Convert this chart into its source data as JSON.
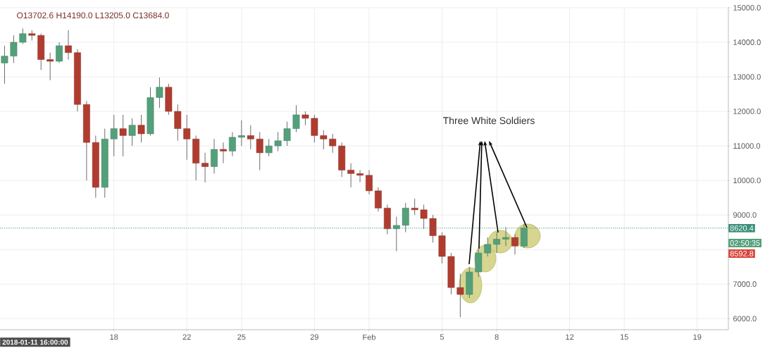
{
  "chart_data": {
    "type": "candlestick",
    "x": [
      "2018-01-12T00:00",
      "2018-01-12T12:00",
      "2018-01-13T00:00",
      "2018-01-13T12:00",
      "2018-01-14T00:00",
      "2018-01-14T12:00",
      "2018-01-15T00:00",
      "2018-01-15T12:00",
      "2018-01-16T00:00",
      "2018-01-16T12:00",
      "2018-01-17T00:00",
      "2018-01-17T12:00",
      "2018-01-18T00:00",
      "2018-01-18T12:00",
      "2018-01-19T00:00",
      "2018-01-19T12:00",
      "2018-01-20T00:00",
      "2018-01-20T12:00",
      "2018-01-21T00:00",
      "2018-01-21T12:00",
      "2018-01-22T00:00",
      "2018-01-22T12:00",
      "2018-01-23T00:00",
      "2018-01-23T12:00",
      "2018-01-24T00:00",
      "2018-01-24T12:00",
      "2018-01-25T00:00",
      "2018-01-25T12:00",
      "2018-01-26T00:00",
      "2018-01-26T12:00",
      "2018-01-27T00:00",
      "2018-01-27T12:00",
      "2018-01-28T00:00",
      "2018-01-28T12:00",
      "2018-01-29T00:00",
      "2018-01-29T12:00",
      "2018-01-30T00:00",
      "2018-01-30T12:00",
      "2018-01-31T00:00",
      "2018-01-31T12:00",
      "2018-02-01T00:00",
      "2018-02-01T12:00",
      "2018-02-02T00:00",
      "2018-02-02T12:00",
      "2018-02-03T00:00",
      "2018-02-03T12:00",
      "2018-02-04T00:00",
      "2018-02-04T12:00",
      "2018-02-05T00:00",
      "2018-02-05T12:00",
      "2018-02-06T00:00",
      "2018-02-06T12:00",
      "2018-02-07T00:00",
      "2018-02-07T12:00",
      "2018-02-08T00:00",
      "2018-02-08T12:00",
      "2018-02-09T00:00",
      "2018-02-09T12:00"
    ],
    "ohlc": [
      [
        13400,
        13900,
        12800,
        13600
      ],
      [
        13600,
        14200,
        13400,
        14000
      ],
      [
        14000,
        14400,
        13950,
        14250
      ],
      [
        14250,
        14350,
        14050,
        14200
      ],
      [
        14200,
        14250,
        13200,
        13500
      ],
      [
        13500,
        13700,
        12900,
        13450
      ],
      [
        13450,
        14000,
        13400,
        13900
      ],
      [
        13900,
        14350,
        13500,
        13700
      ],
      [
        13700,
        13800,
        12000,
        12200
      ],
      [
        12200,
        12300,
        10000,
        11100
      ],
      [
        11100,
        11300,
        9500,
        9800
      ],
      [
        9800,
        11500,
        9500,
        11200
      ],
      [
        11200,
        11900,
        10700,
        11500
      ],
      [
        11500,
        11900,
        10700,
        11300
      ],
      [
        11300,
        11800,
        11000,
        11600
      ],
      [
        11600,
        11900,
        11100,
        11350
      ],
      [
        11350,
        12700,
        11300,
        12400
      ],
      [
        12400,
        12980,
        12100,
        12700
      ],
      [
        12700,
        12800,
        11900,
        12000
      ],
      [
        12000,
        12200,
        11150,
        11500
      ],
      [
        11500,
        11900,
        10600,
        11200
      ],
      [
        11200,
        11300,
        10000,
        10500
      ],
      [
        10500,
        10800,
        9940,
        10400
      ],
      [
        10400,
        11200,
        10200,
        10900
      ],
      [
        10900,
        11100,
        10500,
        10850
      ],
      [
        10850,
        11400,
        10700,
        11250
      ],
      [
        11250,
        11740,
        11000,
        11300
      ],
      [
        11300,
        11600,
        10900,
        11200
      ],
      [
        11200,
        11400,
        10300,
        10800
      ],
      [
        10800,
        11200,
        10700,
        11000
      ],
      [
        11000,
        11400,
        10850,
        11150
      ],
      [
        11150,
        11700,
        11000,
        11500
      ],
      [
        11500,
        12180,
        11400,
        11900
      ],
      [
        11900,
        12000,
        11600,
        11800
      ],
      [
        11800,
        11900,
        11100,
        11300
      ],
      [
        11300,
        11450,
        10900,
        11200
      ],
      [
        11200,
        11350,
        10800,
        11000
      ],
      [
        11000,
        11100,
        10100,
        10300
      ],
      [
        10300,
        10500,
        9800,
        10200
      ],
      [
        10200,
        10300,
        9950,
        10150
      ],
      [
        10150,
        10300,
        9600,
        9700
      ],
      [
        9700,
        9800,
        9100,
        9200
      ],
      [
        9200,
        9300,
        8440,
        8600
      ],
      [
        8600,
        8950,
        7950,
        8700
      ],
      [
        8700,
        9350,
        8500,
        9200
      ],
      [
        9200,
        9470,
        9000,
        9150
      ],
      [
        9150,
        9300,
        8600,
        8900
      ],
      [
        8900,
        9000,
        8200,
        8400
      ],
      [
        8400,
        8500,
        7600,
        7800
      ],
      [
        7800,
        7900,
        6700,
        6900
      ],
      [
        6900,
        7300,
        6040,
        6700
      ],
      [
        6700,
        7500,
        6600,
        7350
      ],
      [
        7350,
        8050,
        7200,
        7900
      ],
      [
        7900,
        8350,
        7800,
        8150
      ],
      [
        8150,
        8500,
        7900,
        8300
      ],
      [
        8300,
        8650,
        8100,
        8350
      ],
      [
        8350,
        8450,
        7850,
        8100
      ],
      [
        8100,
        8750,
        8050,
        8620.4
      ]
    ],
    "colors": [
      "#53a07a",
      "#53a07a",
      "#53a07a",
      "#b03c30",
      "#b03c30",
      "#b03c30",
      "#53a07a",
      "#b03c30",
      "#b03c30",
      "#b03c30",
      "#b03c30",
      "#53a07a",
      "#53a07a",
      "#b03c30",
      "#53a07a",
      "#b03c30",
      "#53a07a",
      "#53a07a",
      "#b03c30",
      "#b03c30",
      "#b03c30",
      "#b03c30",
      "#b03c30",
      "#53a07a",
      "#b03c30",
      "#53a07a",
      "#53a07a",
      "#b03c30",
      "#b03c30",
      "#53a07a",
      "#53a07a",
      "#53a07a",
      "#53a07a",
      "#b03c30",
      "#b03c30",
      "#b03c30",
      "#b03c30",
      "#b03c30",
      "#b03c30",
      "#b03c30",
      "#b03c30",
      "#b03c30",
      "#b03c30",
      "#53a07a",
      "#53a07a",
      "#b03c30",
      "#b03c30",
      "#b03c30",
      "#b03c30",
      "#b03c30",
      "#b03c30",
      "#53a07a",
      "#53a07a",
      "#53a07a",
      "#53a07a",
      "#53a07a",
      "#b03c30",
      "#53a07a"
    ],
    "xlim": [
      "2018-01-11T18:00",
      "2018-02-20T17:00"
    ],
    "xticks": [
      {
        "value": "2018-01-18",
        "label": "18"
      },
      {
        "value": "2018-01-22",
        "label": "22"
      },
      {
        "value": "2018-01-25",
        "label": "25"
      },
      {
        "value": "2018-01-29",
        "label": "29"
      },
      {
        "value": "2018-02-01",
        "label": "Feb"
      },
      {
        "value": "2018-02-05",
        "label": "5"
      },
      {
        "value": "2018-02-08",
        "label": "8"
      },
      {
        "value": "2018-02-12",
        "label": "12"
      },
      {
        "value": "2018-02-15",
        "label": "15"
      },
      {
        "value": "2018-02-19",
        "label": "19"
      }
    ],
    "ylim": [
      5680,
      15020
    ],
    "yticks": [
      {
        "value": 6000,
        "label": "6000.0"
      },
      {
        "value": 7000,
        "label": "7000.0"
      },
      {
        "value": 8000,
        "label": null
      },
      {
        "value": 9000,
        "label": "9000.0"
      },
      {
        "value": 10000,
        "label": "10000.0"
      },
      {
        "value": 11000,
        "label": "11000.0"
      },
      {
        "value": 12000,
        "label": "12000.0"
      },
      {
        "value": 13000,
        "label": "13000.0"
      },
      {
        "value": 14000,
        "label": "14000.0"
      },
      {
        "value": 15000,
        "label": "15000.0"
      }
    ],
    "grid": true,
    "ref_lines": [
      {
        "axis": "y",
        "value": 8620.4,
        "label": "8620.4",
        "color": "#3d8f7a",
        "line_style": "dotted"
      }
    ],
    "annotations": [
      "O13702.6 H14190.0 L13205.0 C13684.0",
      "Three White Soldiers",
      "02:50:35",
      "8592.8",
      "2018-01-11 16:00:00"
    ]
  }
}
